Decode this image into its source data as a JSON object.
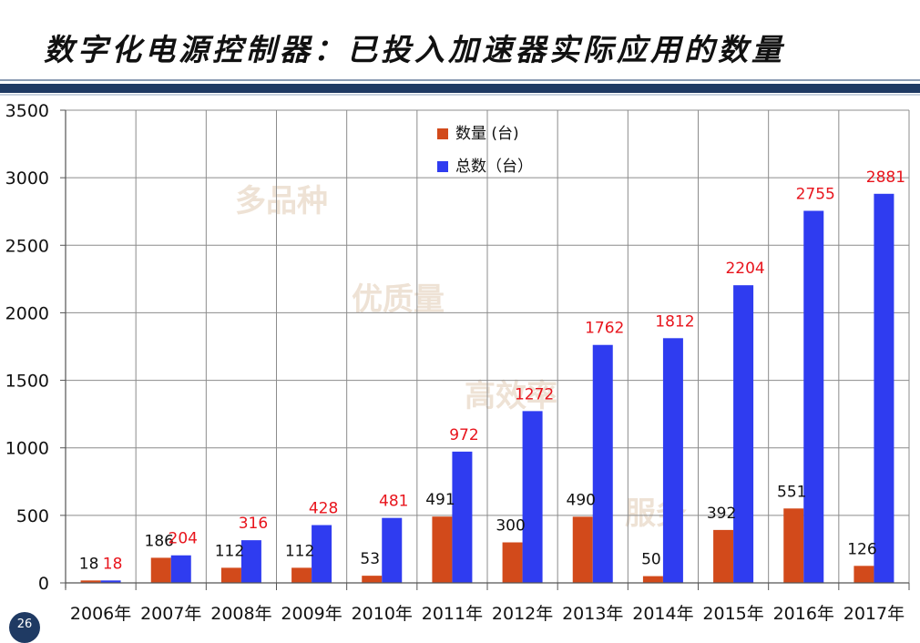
{
  "slide": {
    "title": "数字化电源控制器：已投入加速器实际应用的数量",
    "page_number": "26",
    "watermarks": [
      "多品种",
      "优质量",
      "高效率",
      "服务"
    ]
  },
  "colors": {
    "series_qty": "#d24a1b",
    "series_total": "#2f3cf0",
    "total_label": "#e8141c",
    "qty_label": "#111111",
    "header_bar": "#1f3a63"
  },
  "chart_data": {
    "type": "bar",
    "categories": [
      "2006年",
      "2007年",
      "2008年",
      "2009年",
      "2010年",
      "2011年",
      "2012年",
      "2013年",
      "2014年",
      "2015年",
      "2016年",
      "2017年"
    ],
    "series": [
      {
        "name": "数量 (台)",
        "values": [
          18,
          186,
          112,
          112,
          53,
          491,
          300,
          490,
          50,
          392,
          551,
          126
        ]
      },
      {
        "name": "总数（台）",
        "values": [
          18,
          204,
          316,
          428,
          481,
          972,
          1272,
          1762,
          1812,
          2204,
          2755,
          2881
        ]
      }
    ],
    "ylim": [
      0,
      3500
    ],
    "yticks": [
      0,
      500,
      1000,
      1500,
      2000,
      2500,
      3000,
      3500
    ],
    "grid": true,
    "legend": "top-center"
  }
}
